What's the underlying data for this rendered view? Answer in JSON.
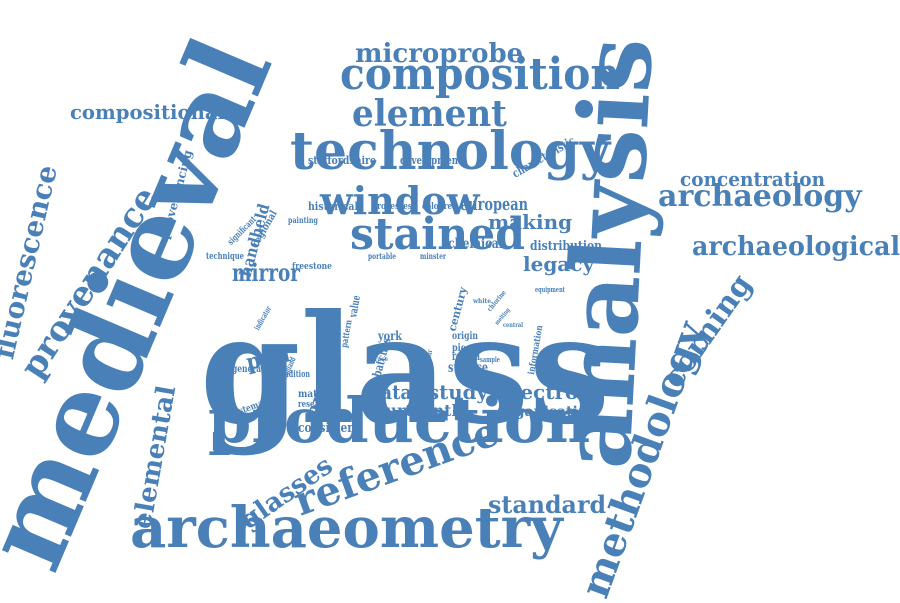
{
  "color": "#4a80b8",
  "words": [
    {
      "key": "medieval",
      "text": "medieval"
    },
    {
      "key": "glass",
      "text": "glass"
    },
    {
      "key": "analysis",
      "text": "analysis"
    },
    {
      "key": "production",
      "text": "production"
    },
    {
      "key": "archaeometry",
      "text": "archaeometry"
    },
    {
      "key": "technology",
      "text": "technology"
    },
    {
      "key": "composition",
      "text": "composition"
    },
    {
      "key": "stained",
      "text": "stained"
    },
    {
      "key": "window",
      "text": "window"
    },
    {
      "key": "element",
      "text": "element"
    },
    {
      "key": "microprobe",
      "text": "microprobe"
    },
    {
      "key": "reference",
      "text": "reference"
    },
    {
      "key": "methodology",
      "text": "methodology"
    },
    {
      "key": "provenance",
      "text": "provenance"
    },
    {
      "key": "fluorescence",
      "text": "fluorescence"
    },
    {
      "key": "archaeology",
      "text": "archaeology"
    },
    {
      "key": "archaeological",
      "text": "archaeological"
    },
    {
      "key": "concentration",
      "text": "concentration"
    },
    {
      "key": "corning",
      "text": "corning"
    },
    {
      "key": "compositional",
      "text": "compositional"
    },
    {
      "key": "elemental",
      "text": "elemental"
    },
    {
      "key": "glasses",
      "text": "glasses"
    },
    {
      "key": "standard",
      "text": "standard"
    },
    {
      "key": "making",
      "text": "making"
    },
    {
      "key": "legacy",
      "text": "legacy"
    },
    {
      "key": "mirror",
      "text": "mirror"
    },
    {
      "key": "data",
      "text": "data"
    },
    {
      "key": "study",
      "text": "study"
    },
    {
      "key": "electron",
      "text": "electron"
    },
    {
      "key": "fourteenth",
      "text": "fourteenth"
    },
    {
      "key": "organisation",
      "text": "organisation"
    },
    {
      "key": "pxrf",
      "text": "pxrf"
    },
    {
      "key": "epma",
      "text": "epma"
    },
    {
      "key": "european",
      "text": "european"
    },
    {
      "key": "chemical",
      "text": "chemical"
    },
    {
      "key": "distribution",
      "text": "distribution"
    },
    {
      "key": "handheld",
      "text": "handheld"
    },
    {
      "key": "provenancing",
      "text": "provenancing"
    },
    {
      "key": "consistent",
      "text": "consistent"
    },
    {
      "key": "characteristic",
      "text": "characteristic"
    },
    {
      "key": "staffordshire",
      "text": "staffordshire"
    },
    {
      "key": "development",
      "text": "development"
    },
    {
      "key": "historical",
      "text": "historical"
    },
    {
      "key": "processes",
      "text": "processes"
    },
    {
      "key": "coloured",
      "text": "coloured"
    },
    {
      "key": "regional",
      "text": "regional"
    },
    {
      "key": "significant",
      "text": "significant"
    },
    {
      "key": "painting",
      "text": "painting"
    },
    {
      "key": "technique",
      "text": "technique"
    },
    {
      "key": "freestone",
      "text": "freestone"
    },
    {
      "key": "portable",
      "text": "portable"
    },
    {
      "key": "minster",
      "text": "minster"
    },
    {
      "key": "equipment",
      "text": "equipment"
    },
    {
      "key": "indicator",
      "text": "indicator"
    },
    {
      "key": "england",
      "text": "england"
    },
    {
      "key": "generation",
      "text": "generation"
    },
    {
      "key": "condition",
      "text": "condition"
    },
    {
      "key": "systematic",
      "text": "systematic"
    },
    {
      "key": "material",
      "text": "material"
    },
    {
      "key": "research",
      "text": "research"
    },
    {
      "key": "pattern",
      "text": "pattern"
    },
    {
      "key": "value",
      "text": "value"
    },
    {
      "key": "batches",
      "text": "batches"
    },
    {
      "key": "york",
      "text": "york"
    },
    {
      "key": "century",
      "text": "century"
    },
    {
      "key": "origin",
      "text": "origin"
    },
    {
      "key": "piece",
      "text": "piece"
    },
    {
      "key": "region",
      "text": "region"
    },
    {
      "key": "surface",
      "text": "surface"
    },
    {
      "key": "information",
      "text": "information"
    },
    {
      "key": "sample",
      "text": "sample"
    },
    {
      "key": "change",
      "text": "change"
    },
    {
      "key": "chlorine",
      "text": "chlorine"
    },
    {
      "key": "melting",
      "text": "melting"
    },
    {
      "key": "central",
      "text": "central"
    },
    {
      "key": "white",
      "text": "white"
    },
    {
      "key": "sulphur",
      "text": "sulphur"
    },
    {
      "key": "egypt",
      "text": "egypt"
    },
    {
      "key": "trace",
      "text": "trace"
    }
  ]
}
